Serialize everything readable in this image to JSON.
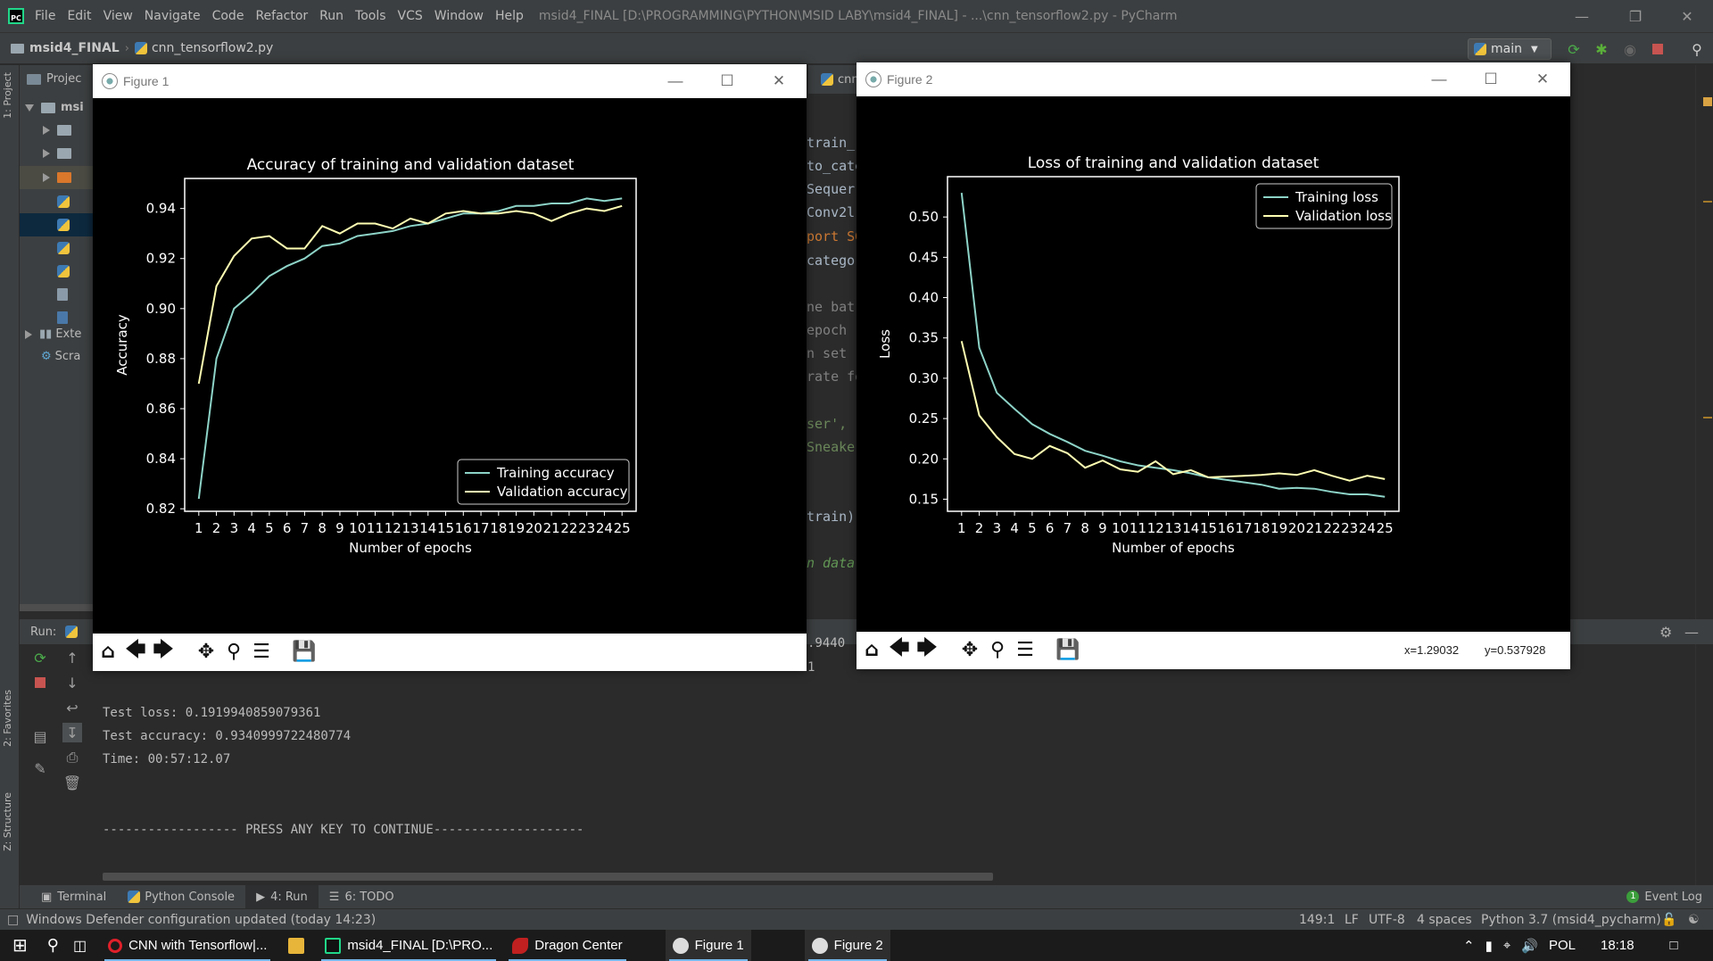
{
  "app": {
    "menu": [
      "File",
      "Edit",
      "View",
      "Navigate",
      "Code",
      "Refactor",
      "Run",
      "Tools",
      "VCS",
      "Window",
      "Help"
    ],
    "window_title": "msid4_FINAL [D:\\PROGRAMMING\\PYTHON\\MSID LABY\\msid4_FINAL] - ...\\cnn_tensorflow2.py - PyCharm",
    "breadcrumb_project": "msid4_FINAL",
    "breadcrumb_file": "cnn_tensorflow2.py",
    "run_config": "main",
    "editor_tab": "cnn_"
  },
  "side_tabs": {
    "project": "1: Project",
    "favorites": "2: Favorites",
    "structure": "Z: Structure"
  },
  "project_tree": {
    "header": "Projec",
    "root": "msi",
    "ext_libs": "Exte",
    "scratches": "Scra"
  },
  "editor_lines": [
    "train_",
    "to_cate",
    "Sequer",
    "Conv2l",
    "port SG",
    "catego",
    "",
    "ne bat",
    "epoch",
    "n set ",
    "rate fo",
    "",
    "ser',",
    "Sneaker",
    "",
    "",
    "train)",
    "",
    "n data"
  ],
  "run_panel": {
    "label": "Run:",
    "partial_top": ".9440",
    "partial_line2": "1",
    "lines": [
      "Test loss: 0.1919940859079361",
      "Test accuracy: 0.9340999722480774",
      "Time: 00:57:12.07",
      "",
      "",
      "------------------ PRESS ANY KEY TO CONTINUE--------------------"
    ]
  },
  "bottom_tabs": [
    "Terminal",
    "Python Console",
    "4: Run",
    "6: TODO"
  ],
  "event_log": "Event Log",
  "status": {
    "message": "Windows Defender configuration updated (today 14:23)",
    "position": "149:1",
    "line_sep": "LF",
    "encoding": "UTF-8",
    "indent": "4 spaces",
    "interpreter": "Python 3.7 (msid4_pycharm)"
  },
  "taskbar": {
    "items": [
      "CNN with Tensorflow|...",
      "msid4_FINAL [D:\\PRO...",
      "Dragon Center",
      "Figure 1",
      "Figure 2"
    ],
    "lang": "POL",
    "time": "18:18"
  },
  "figure1": {
    "title_bar": "Figure 1",
    "status": ""
  },
  "figure2": {
    "title_bar": "Figure 2",
    "coord_x": "x=1.29032",
    "coord_y": "y=0.537928"
  },
  "chart_data": [
    {
      "type": "line",
      "title": "Accuracy of training and validation dataset",
      "xlabel": "Number of epochs",
      "ylabel": "Accuracy",
      "x": [
        1,
        2,
        3,
        4,
        5,
        6,
        7,
        8,
        9,
        10,
        11,
        12,
        13,
        14,
        15,
        16,
        17,
        18,
        19,
        20,
        21,
        22,
        23,
        24,
        25
      ],
      "xticks": [
        "1",
        "2",
        "3",
        "4",
        "5",
        "6",
        "7",
        "8",
        "9",
        "10",
        "11",
        "12",
        "13",
        "14",
        "15",
        "16",
        "17",
        "18",
        "19",
        "20",
        "21",
        "22",
        "23",
        "24",
        "25"
      ],
      "yticks": [
        0.82,
        0.84,
        0.86,
        0.88,
        0.9,
        0.92,
        0.94
      ],
      "ylim": [
        0.819,
        0.952
      ],
      "legend_position": "lower right",
      "series": [
        {
          "name": "Training accuracy",
          "color": "#8dd3c7",
          "values": [
            0.824,
            0.88,
            0.9,
            0.906,
            0.913,
            0.917,
            0.92,
            0.925,
            0.926,
            0.929,
            0.93,
            0.931,
            0.933,
            0.934,
            0.936,
            0.938,
            0.938,
            0.939,
            0.941,
            0.941,
            0.942,
            0.942,
            0.944,
            0.943,
            0.944
          ]
        },
        {
          "name": "Validation accuracy",
          "color": "#ffffb3",
          "values": [
            0.87,
            0.909,
            0.921,
            0.928,
            0.929,
            0.924,
            0.924,
            0.933,
            0.93,
            0.934,
            0.934,
            0.932,
            0.936,
            0.934,
            0.938,
            0.939,
            0.938,
            0.938,
            0.939,
            0.938,
            0.935,
            0.938,
            0.94,
            0.939,
            0.941
          ]
        }
      ]
    },
    {
      "type": "line",
      "title": "Loss of training and validation dataset",
      "xlabel": "Number of epochs",
      "ylabel": "Loss",
      "x": [
        1,
        2,
        3,
        4,
        5,
        6,
        7,
        8,
        9,
        10,
        11,
        12,
        13,
        14,
        15,
        16,
        17,
        18,
        19,
        20,
        21,
        22,
        23,
        24,
        25
      ],
      "xticks": [
        "1",
        "2",
        "3",
        "4",
        "5",
        "6",
        "7",
        "8",
        "9",
        "10",
        "11",
        "12",
        "13",
        "14",
        "15",
        "16",
        "17",
        "18",
        "19",
        "20",
        "21",
        "22",
        "23",
        "24",
        "25"
      ],
      "yticks": [
        0.15,
        0.2,
        0.25,
        0.3,
        0.35,
        0.4,
        0.45,
        0.5
      ],
      "ylim": [
        0.135,
        0.55
      ],
      "legend_position": "upper right",
      "series": [
        {
          "name": "Training loss",
          "color": "#8dd3c7",
          "values": [
            0.53,
            0.338,
            0.282,
            0.262,
            0.243,
            0.231,
            0.221,
            0.21,
            0.204,
            0.197,
            0.192,
            0.189,
            0.186,
            0.182,
            0.177,
            0.174,
            0.171,
            0.168,
            0.163,
            0.164,
            0.163,
            0.159,
            0.156,
            0.156,
            0.153
          ]
        },
        {
          "name": "Validation loss",
          "color": "#ffffb3",
          "values": [
            0.346,
            0.254,
            0.227,
            0.206,
            0.2,
            0.216,
            0.207,
            0.189,
            0.198,
            0.187,
            0.184,
            0.197,
            0.181,
            0.186,
            0.177,
            0.178,
            0.179,
            0.18,
            0.182,
            0.18,
            0.186,
            0.179,
            0.173,
            0.179,
            0.175
          ]
        }
      ]
    }
  ]
}
